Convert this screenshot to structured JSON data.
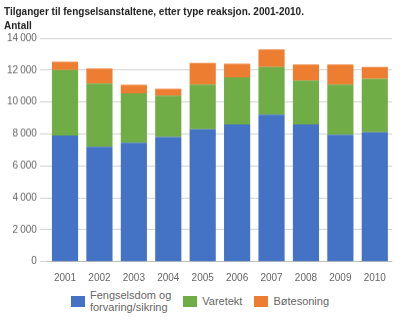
{
  "chart_data": {
    "type": "bar",
    "stacked": true,
    "title": "Tilganger til fengselsanstaltene, etter type reaksjon. 2001-2010.",
    "subtitle": "Antall",
    "categories": [
      "2001",
      "2002",
      "2003",
      "2004",
      "2005",
      "2006",
      "2007",
      "2008",
      "2009",
      "2010"
    ],
    "series": [
      {
        "name": "Fengselsdom og\nforvaring/sikring",
        "color": "#4472C4",
        "values": [
          7900,
          7200,
          7450,
          7800,
          8300,
          8600,
          9200,
          8600,
          7950,
          8100
        ]
      },
      {
        "name": "Varetekt",
        "color": "#70AD47",
        "values": [
          4100,
          3950,
          3100,
          2600,
          2800,
          2950,
          3000,
          2750,
          3150,
          3350
        ]
      },
      {
        "name": "Bøtesoning",
        "color": "#ED7D31",
        "values": [
          520,
          950,
          520,
          430,
          1350,
          850,
          1100,
          1000,
          1250,
          750
        ]
      }
    ],
    "ylim": [
      0,
      14000
    ],
    "yticks": [
      0,
      {
        "value": 2000,
        "label": "2 000"
      },
      {
        "value": 4000,
        "label": "4 000"
      },
      {
        "value": 6000,
        "label": "6 000"
      },
      {
        "value": 8000,
        "label": "8 000"
      },
      {
        "value": 10000,
        "label": "10 000"
      },
      {
        "value": 12000,
        "label": "12 000"
      },
      {
        "value": 14000,
        "label": "14 000"
      }
    ],
    "grid": true,
    "legend": "bottom"
  }
}
